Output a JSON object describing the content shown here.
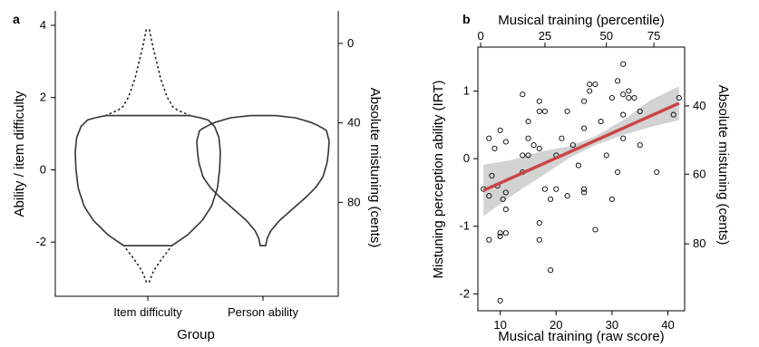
{
  "chart_data": [
    {
      "panel": "a",
      "type": "violin",
      "categories": [
        "Item difficulty",
        "Person ability"
      ],
      "xlabel": "Group",
      "ylabel": "Ability / item difficulty",
      "ylabel_right": "Absolute mistuning (cents)",
      "ylim": [
        -3.5,
        4.4
      ],
      "yticks": [
        -2,
        0,
        2,
        4
      ],
      "yticks_right": [
        {
          "label": "0",
          "y": 3.5
        },
        {
          "label": "40",
          "y": 1.3
        },
        {
          "label": "80",
          "y": -0.9
        }
      ],
      "violins": [
        {
          "category": "Item difficulty",
          "solid_range": [
            -2.1,
            1.5
          ],
          "dotted_range": [
            -3.1,
            3.9
          ],
          "profile": [
            [
              -3.1,
              0.02
            ],
            [
              -2.8,
              0.08
            ],
            [
              -2.5,
              0.18
            ],
            [
              -2.1,
              0.33
            ],
            [
              -1.8,
              0.55
            ],
            [
              -1.4,
              0.75
            ],
            [
              -1.0,
              0.88
            ],
            [
              -0.5,
              0.96
            ],
            [
              0.0,
              0.99
            ],
            [
              0.5,
              1.0
            ],
            [
              0.9,
              0.98
            ],
            [
              1.2,
              0.92
            ],
            [
              1.4,
              0.82
            ],
            [
              1.5,
              0.58
            ],
            [
              1.7,
              0.36
            ],
            [
              2.0,
              0.27
            ],
            [
              2.5,
              0.18
            ],
            [
              3.0,
              0.12
            ],
            [
              3.5,
              0.06
            ],
            [
              3.9,
              0.02
            ]
          ]
        },
        {
          "category": "Person ability",
          "solid_range": [
            -2.1,
            1.5
          ],
          "profile": [
            [
              -2.1,
              0.04
            ],
            [
              -1.9,
              0.06
            ],
            [
              -1.7,
              0.11
            ],
            [
              -1.4,
              0.24
            ],
            [
              -1.1,
              0.42
            ],
            [
              -0.8,
              0.6
            ],
            [
              -0.5,
              0.76
            ],
            [
              -0.2,
              0.87
            ],
            [
              0.2,
              0.93
            ],
            [
              0.5,
              0.95
            ],
            [
              0.8,
              0.96
            ],
            [
              1.1,
              0.92
            ],
            [
              1.3,
              0.72
            ],
            [
              1.45,
              0.45
            ],
            [
              1.5,
              0.18
            ]
          ]
        }
      ]
    },
    {
      "panel": "b",
      "type": "scatter",
      "xlabel": "Musical training (raw score)",
      "xlabel_top": "Musical training (percentile)",
      "ylabel": "Mistuning perception ability (IRT)",
      "ylabel_right": "Absolute mistuning (cents)",
      "xlim": [
        6,
        43
      ],
      "ylim": [
        -2.25,
        1.65
      ],
      "xticks": [
        10,
        20,
        30,
        40
      ],
      "yticks": [
        -2,
        -1,
        0,
        1
      ],
      "xticks_top": [
        {
          "label": "0",
          "x": 6.5
        },
        {
          "label": "25",
          "x": 18
        },
        {
          "label": "50",
          "x": 29
        },
        {
          "label": "75",
          "x": 37.5
        }
      ],
      "yticks_right": [
        {
          "label": "40",
          "y": 0.78
        },
        {
          "label": "60",
          "y": -0.23
        },
        {
          "label": "80",
          "y": -1.26
        }
      ],
      "fit_line": {
        "x": [
          7,
          42
        ],
        "y": [
          -0.47,
          0.82
        ],
        "color": "#cc4444"
      },
      "confidence_band": {
        "x": [
          7,
          12,
          17,
          22,
          24.5,
          27,
          32,
          37,
          42
        ],
        "lower": [
          -0.85,
          -0.55,
          -0.28,
          -0.01,
          0.1,
          0.2,
          0.35,
          0.47,
          0.57
        ],
        "upper": [
          -0.09,
          -0.02,
          0.1,
          0.18,
          0.25,
          0.33,
          0.57,
          0.87,
          1.07
        ],
        "color": "#d3d3d3"
      },
      "points": [
        [
          7,
          -0.45
        ],
        [
          8,
          -0.55
        ],
        [
          8,
          -1.2
        ],
        [
          8,
          0.3
        ],
        [
          8.5,
          -0.25
        ],
        [
          9,
          0.15
        ],
        [
          9.5,
          -0.4
        ],
        [
          10,
          -1.1
        ],
        [
          10,
          -1.15
        ],
        [
          10,
          0.42
        ],
        [
          10,
          -2.1
        ],
        [
          10.5,
          -0.6
        ],
        [
          11,
          -0.5
        ],
        [
          11,
          -0.75
        ],
        [
          11,
          -1.1
        ],
        [
          11,
          0.25
        ],
        [
          14,
          0.95
        ],
        [
          14,
          0.05
        ],
        [
          14,
          -0.2
        ],
        [
          15,
          0.55
        ],
        [
          15,
          0.3
        ],
        [
          15,
          0.05
        ],
        [
          16,
          0.2
        ],
        [
          17,
          0.85
        ],
        [
          17,
          0.7
        ],
        [
          17,
          0.15
        ],
        [
          17,
          -0.95
        ],
        [
          17,
          -1.2
        ],
        [
          18,
          0.7
        ],
        [
          18,
          -0.45
        ],
        [
          19,
          -0.6
        ],
        [
          19,
          -1.65
        ],
        [
          20,
          0.05
        ],
        [
          20,
          -0.45
        ],
        [
          21,
          0.3
        ],
        [
          22,
          0.7
        ],
        [
          22,
          -0.55
        ],
        [
          23,
          0.2
        ],
        [
          24,
          -0.1
        ],
        [
          25,
          0.85
        ],
        [
          25,
          0.45
        ],
        [
          25,
          -0.45
        ],
        [
          25,
          -0.5
        ],
        [
          26,
          1.1
        ],
        [
          26,
          1.0
        ],
        [
          27,
          -1.05
        ],
        [
          27,
          1.1
        ],
        [
          28,
          0.55
        ],
        [
          29,
          0.05
        ],
        [
          30,
          0.9
        ],
        [
          30,
          -0.6
        ],
        [
          31,
          1.15
        ],
        [
          31,
          -0.2
        ],
        [
          32,
          1.4
        ],
        [
          32,
          0.95
        ],
        [
          32,
          0.65
        ],
        [
          32,
          0.3
        ],
        [
          33,
          1.0
        ],
        [
          33,
          0.9
        ],
        [
          34,
          0.9
        ],
        [
          35,
          0.7
        ],
        [
          35,
          0.2
        ],
        [
          38,
          -0.2
        ],
        [
          41,
          0.65
        ],
        [
          42,
          0.9
        ]
      ]
    }
  ]
}
